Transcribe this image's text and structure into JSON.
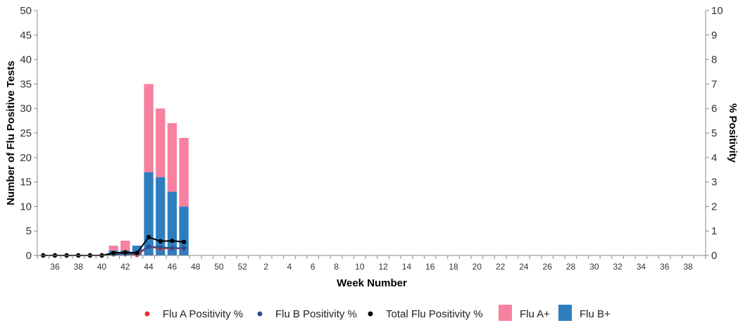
{
  "chart_data": {
    "type": "bar",
    "stacked": true,
    "title": "",
    "xlabel": "Week Number",
    "ylabel": "Number of Flu Positive Tests",
    "y2label": "% Positivity",
    "ylim": [
      0,
      50
    ],
    "y_ticks": [
      0,
      5,
      10,
      15,
      20,
      25,
      30,
      35,
      40,
      45,
      50
    ],
    "y2lim": [
      0,
      10
    ],
    "y2_ticks": [
      0,
      1,
      2,
      3,
      4,
      5,
      6,
      7,
      8,
      9,
      10
    ],
    "grid": false,
    "legend_position": "bottom",
    "categories": [
      "35",
      "36",
      "37",
      "38",
      "39",
      "40",
      "41",
      "42",
      "43",
      "44",
      "45",
      "46",
      "47",
      "48",
      "49",
      "50",
      "51",
      "52",
      "1",
      "2",
      "3",
      "4",
      "5",
      "6",
      "7",
      "8",
      "9",
      "10",
      "11",
      "12",
      "13",
      "14",
      "15",
      "16",
      "17",
      "18",
      "19",
      "20",
      "21",
      "22",
      "23",
      "24",
      "25",
      "26",
      "27",
      "28",
      "29",
      "30",
      "31",
      "32",
      "33",
      "34",
      "35",
      "36",
      "37",
      "38",
      "39"
    ],
    "x_tick_labels": [
      "36",
      "38",
      "40",
      "42",
      "44",
      "46",
      "48",
      "50",
      "52",
      "2",
      "4",
      "6",
      "8",
      "10",
      "12",
      "14",
      "16",
      "18",
      "20",
      "22",
      "24",
      "26",
      "28",
      "30",
      "32",
      "34",
      "36",
      "38"
    ],
    "bar_series": [
      {
        "name": "Flu B+",
        "color": "#2e7ebf",
        "values": [
          0,
          0,
          0,
          0,
          0,
          0,
          1,
          1,
          2,
          17,
          16,
          13,
          10
        ]
      },
      {
        "name": "Flu A+",
        "color": "#f7819f",
        "values": [
          0,
          0,
          0,
          0,
          0,
          0,
          1,
          2,
          0,
          18,
          14,
          14,
          14
        ]
      }
    ],
    "line_series": [
      {
        "name": "Flu A Positivity %",
        "color": "#e8302f",
        "axis": "right",
        "values": [
          0,
          0,
          0,
          0,
          0,
          0,
          0.05,
          0.08,
          0.02,
          0.36,
          0.28,
          0.29,
          0.28
        ]
      },
      {
        "name": "Flu B Positivity %",
        "color": "#2b4f8c",
        "axis": "right",
        "values": [
          0,
          0,
          0,
          0,
          0,
          0,
          0.05,
          0.05,
          0.08,
          0.36,
          0.33,
          0.3,
          0.3
        ]
      },
      {
        "name": "Total Flu Positivity %",
        "color": "#000000",
        "axis": "right",
        "values": [
          0,
          0,
          0,
          0,
          0,
          0,
          0.1,
          0.13,
          0.1,
          0.75,
          0.58,
          0.6,
          0.55
        ]
      }
    ],
    "legend": [
      {
        "label": "Flu A Positivity %",
        "marker": "dot",
        "color": "#e8302f"
      },
      {
        "label": "Flu B Positivity %",
        "marker": "dot",
        "color": "#2b4f8c"
      },
      {
        "label": "Total Flu Positivity %",
        "marker": "dot",
        "color": "#000000"
      },
      {
        "label": "Flu A+",
        "marker": "square",
        "color": "#f7819f"
      },
      {
        "label": "Flu B+",
        "marker": "square",
        "color": "#2e7ebf"
      }
    ]
  }
}
